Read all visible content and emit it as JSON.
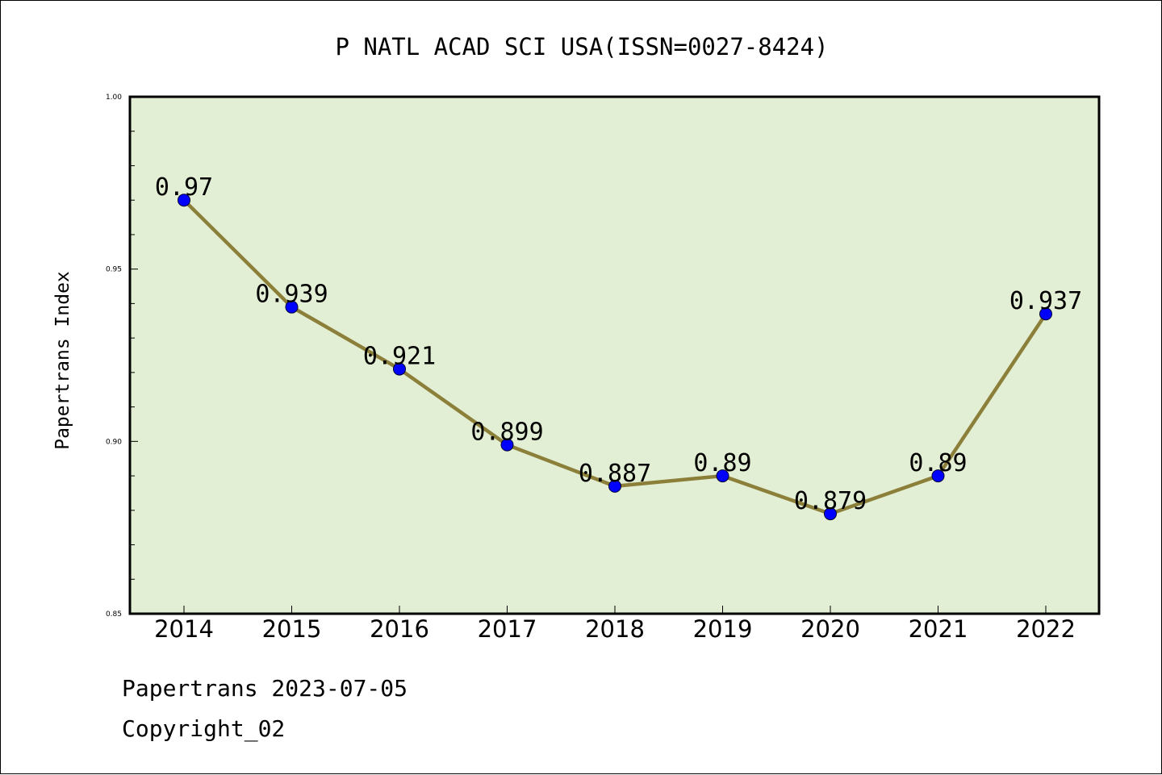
{
  "chart_data": {
    "type": "line",
    "title": "P NATL ACAD SCI USA(ISSN=0027-8424)",
    "xlabel": "",
    "ylabel": "Papertrans Index",
    "categories": [
      "2014",
      "2015",
      "2016",
      "2017",
      "2018",
      "2019",
      "2020",
      "2021",
      "2022"
    ],
    "series": [
      {
        "values": [
          0.97,
          0.939,
          0.921,
          0.899,
          0.887,
          0.89,
          0.879,
          0.89,
          0.937
        ],
        "labels": [
          "0.97",
          "0.939",
          "0.921",
          "0.899",
          "0.887",
          "0.89",
          "0.879",
          "0.89",
          "0.937"
        ]
      }
    ],
    "ylim": [
      0.85,
      1.0
    ],
    "yticks": [
      0.85,
      0.9,
      0.95,
      1.0
    ],
    "ytick_labels": [
      "0.85",
      "0.90",
      "0.95",
      "1.00"
    ],
    "grid": false,
    "legend": "none",
    "colors": {
      "plot_background": "#e2efd4",
      "line": "#8c7f3a",
      "marker": "#0000ff"
    }
  },
  "footer": {
    "line1": "Papertrans 2023-07-05",
    "line2": "Copyright_02"
  }
}
